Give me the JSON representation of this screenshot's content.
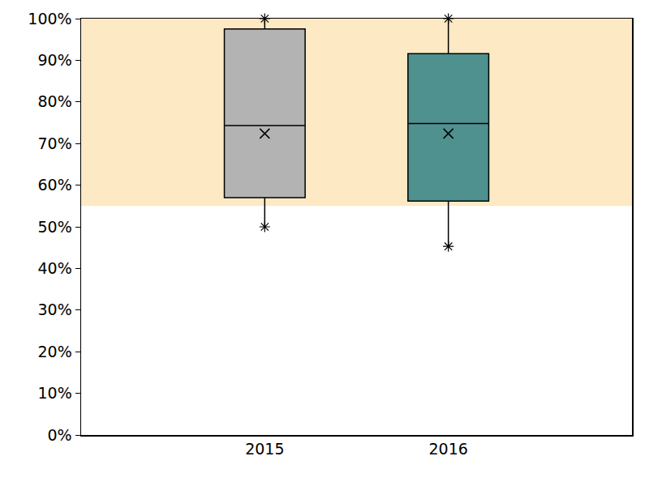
{
  "chart_data": {
    "type": "box",
    "categories": [
      "2015",
      "2016"
    ],
    "boxes": [
      {
        "min": 50,
        "q1": 57,
        "median": 74.3,
        "q3": 97.5,
        "max": 100,
        "mean": 72.4
      },
      {
        "min": 45.3,
        "q1": 56.2,
        "median": 74.8,
        "q3": 91.6,
        "max": 100,
        "mean": 72.4
      }
    ],
    "colors": [
      "#b3b3b3",
      "#4f918f"
    ],
    "band": {
      "from": 55,
      "to": 100,
      "color": "#fde9c4"
    },
    "marker": "asterisk",
    "ylim": [
      0,
      100
    ],
    "yticks": [
      {
        "value": 0,
        "label": "0%"
      },
      {
        "value": 10,
        "label": "10%"
      },
      {
        "value": 20,
        "label": "20%"
      },
      {
        "value": 30,
        "label": "30%"
      },
      {
        "value": 40,
        "label": "40%"
      },
      {
        "value": 50,
        "label": "50%"
      },
      {
        "value": 60,
        "label": "60%"
      },
      {
        "value": 70,
        "label": "70%"
      },
      {
        "value": 80,
        "label": "80%"
      },
      {
        "value": 90,
        "label": "90%"
      },
      {
        "value": 100,
        "label": "100%"
      }
    ],
    "grid": false
  }
}
